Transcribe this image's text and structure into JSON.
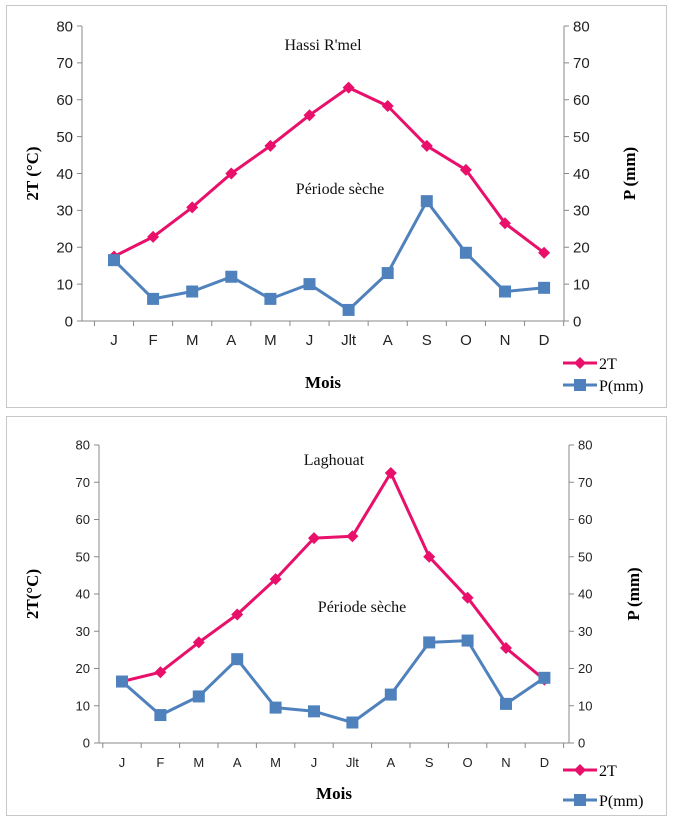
{
  "chart_data": [
    {
      "type": "line",
      "title": "Hassi R'mel",
      "annotation": "Période sèche",
      "xlabel": "Mois",
      "ylabel_left": "2T (°C)",
      "ylabel_right": "P (mm)",
      "categories": [
        "J",
        "F",
        "M",
        "A",
        "M",
        "J",
        "Jlt",
        "A",
        "S",
        "O",
        "N",
        "D"
      ],
      "ylim": [
        0,
        80
      ],
      "yticks": [
        0,
        10,
        20,
        30,
        40,
        50,
        60,
        70,
        80
      ],
      "grid": false,
      "legend_position": "bottom-right",
      "series": [
        {
          "name": "2T",
          "color": "#e8106a",
          "marker": "diamond",
          "axis": "left",
          "values": [
            17.5,
            22.8,
            30.8,
            40.0,
            47.5,
            55.8,
            63.3,
            58.3,
            47.5,
            41.0,
            26.5,
            18.5
          ]
        },
        {
          "name": "P(mm)",
          "color": "#4f81bd",
          "marker": "square",
          "axis": "right",
          "values": [
            16.5,
            6.0,
            8.0,
            12.0,
            6.0,
            10.0,
            3.0,
            13.0,
            32.5,
            18.5,
            8.0,
            9.0
          ]
        }
      ]
    },
    {
      "type": "line",
      "title": "Laghouat",
      "annotation": "Période sèche",
      "xlabel": "Mois",
      "ylabel_left": "2T(°C)",
      "ylabel_right": "P (mm)",
      "categories": [
        "J",
        "F",
        "M",
        "A",
        "M",
        "J",
        "Jlt",
        "A",
        "S",
        "O",
        "N",
        "D"
      ],
      "ylim": [
        0,
        80
      ],
      "yticks": [
        0,
        10,
        20,
        30,
        40,
        50,
        60,
        70,
        80
      ],
      "grid": false,
      "legend_position": "bottom-right",
      "series": [
        {
          "name": "2T",
          "color": "#e8106a",
          "marker": "diamond",
          "axis": "left",
          "values": [
            16.5,
            19.0,
            27.0,
            34.5,
            44.0,
            55.0,
            55.5,
            72.5,
            50.0,
            39.0,
            25.5,
            17.0
          ]
        },
        {
          "name": "P(mm)",
          "color": "#4f81bd",
          "marker": "square",
          "axis": "right",
          "values": [
            16.5,
            7.5,
            12.5,
            22.5,
            9.5,
            8.5,
            5.5,
            13.0,
            27.0,
            27.5,
            10.5,
            17.5
          ]
        }
      ]
    }
  ]
}
